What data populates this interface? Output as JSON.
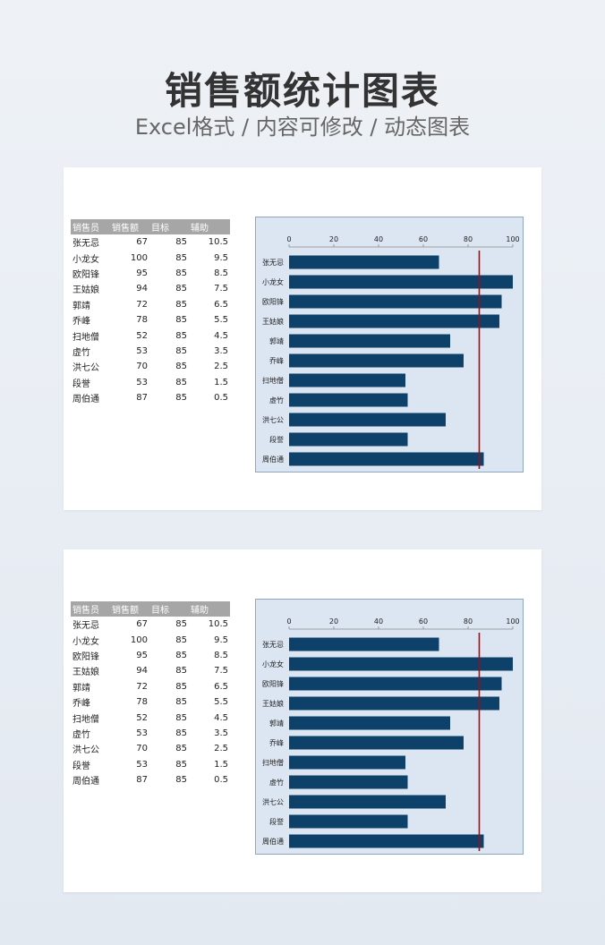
{
  "page": {
    "title": "销售额统计图表",
    "subtitle": "Excel格式 / 内容可修改 / 动态图表"
  },
  "table": {
    "headers": [
      "销售员",
      "销售额",
      "目标",
      "辅助"
    ],
    "rows": [
      [
        "张无忌",
        "67",
        "85",
        "10.5"
      ],
      [
        "小龙女",
        "100",
        "85",
        "9.5"
      ],
      [
        "欧阳锋",
        "95",
        "85",
        "8.5"
      ],
      [
        "王姑娘",
        "94",
        "85",
        "7.5"
      ],
      [
        "郭靖",
        "72",
        "85",
        "6.5"
      ],
      [
        "乔峰",
        "78",
        "85",
        "5.5"
      ],
      [
        "扫地僧",
        "52",
        "85",
        "4.5"
      ],
      [
        "虚竹",
        "53",
        "85",
        "3.5"
      ],
      [
        "洪七公",
        "70",
        "85",
        "2.5"
      ],
      [
        "段誉",
        "53",
        "85",
        "1.5"
      ],
      [
        "周伯通",
        "87",
        "85",
        "0.5"
      ]
    ]
  },
  "chart_data": {
    "type": "bar",
    "orientation": "horizontal",
    "categories": [
      "张无忌",
      "小龙女",
      "欧阳锋",
      "王姑娘",
      "郭靖",
      "乔峰",
      "扫地僧",
      "虚竹",
      "洪七公",
      "段誉",
      "周伯通"
    ],
    "values": [
      67,
      100,
      95,
      94,
      72,
      78,
      52,
      53,
      70,
      53,
      87
    ],
    "target": 85,
    "xlim": [
      0,
      100
    ],
    "xticks": [
      0,
      20,
      40,
      60,
      80,
      100
    ],
    "xaxis_position": "top",
    "bar_color": "#0d4169",
    "target_line_color": "#c00000",
    "plot_background": "#dce6f2",
    "grid": false,
    "legend": "none"
  }
}
